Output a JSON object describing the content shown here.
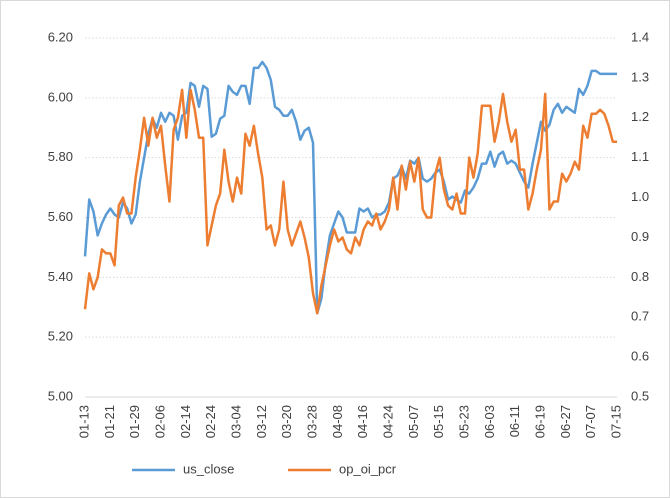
{
  "chart_data": {
    "type": "line",
    "categories": [
      "01-13",
      null,
      null,
      null,
      null,
      null,
      "01-21",
      null,
      null,
      null,
      null,
      null,
      "01-29",
      null,
      null,
      null,
      null,
      null,
      "02-06",
      null,
      null,
      null,
      null,
      null,
      "02-14",
      null,
      null,
      null,
      null,
      null,
      "02-24",
      null,
      null,
      null,
      null,
      null,
      "03-04",
      null,
      null,
      null,
      null,
      null,
      "03-12",
      null,
      null,
      null,
      null,
      null,
      "03-20",
      null,
      null,
      null,
      null,
      null,
      "03-28",
      null,
      null,
      null,
      null,
      null,
      "04-08",
      null,
      null,
      null,
      null,
      null,
      "04-16",
      null,
      null,
      null,
      null,
      null,
      "04-24",
      null,
      null,
      null,
      null,
      null,
      "05-07",
      null,
      null,
      null,
      null,
      null,
      "05-15",
      null,
      null,
      null,
      null,
      null,
      "05-23",
      null,
      null,
      null,
      null,
      null,
      "06-03",
      null,
      null,
      null,
      null,
      null,
      "06-11",
      null,
      null,
      null,
      null,
      null,
      "06-19",
      null,
      null,
      null,
      null,
      null,
      "06-27",
      null,
      null,
      null,
      null,
      null,
      "07-07",
      null,
      null,
      null,
      null,
      null,
      "07-15"
    ],
    "series": [
      {
        "name": "us_close",
        "color": "#5b9bd5",
        "axis": "y",
        "values": [
          5.47,
          5.66,
          5.62,
          5.54,
          5.58,
          5.61,
          5.63,
          5.61,
          5.6,
          5.65,
          5.63,
          5.58,
          5.61,
          5.72,
          5.8,
          5.88,
          5.93,
          5.9,
          5.95,
          5.92,
          5.95,
          5.94,
          5.86,
          5.94,
          5.95,
          6.05,
          6.04,
          5.97,
          6.04,
          6.03,
          5.87,
          5.88,
          5.93,
          5.94,
          6.04,
          6.02,
          6.01,
          6.04,
          6.04,
          5.98,
          6.1,
          6.1,
          6.12,
          6.1,
          6.06,
          5.97,
          5.96,
          5.94,
          5.94,
          5.96,
          5.92,
          5.86,
          5.89,
          5.9,
          5.85,
          5.28,
          5.33,
          5.45,
          5.54,
          5.58,
          5.62,
          5.6,
          5.55,
          5.55,
          5.55,
          5.63,
          5.62,
          5.63,
          5.6,
          5.61,
          5.61,
          5.62,
          5.65,
          5.73,
          5.74,
          5.77,
          5.73,
          5.79,
          5.78,
          5.8,
          5.73,
          5.72,
          5.73,
          5.75,
          5.76,
          5.72,
          5.66,
          5.67,
          5.66,
          5.65,
          5.69,
          5.68,
          5.7,
          5.73,
          5.78,
          5.78,
          5.82,
          5.77,
          5.81,
          5.82,
          5.78,
          5.79,
          5.78,
          5.75,
          5.72,
          5.7,
          5.78,
          5.85,
          5.92,
          5.89,
          5.91,
          5.96,
          5.98,
          5.95,
          5.97,
          5.96,
          5.95,
          6.03,
          6.01,
          6.04,
          6.09,
          6.09,
          6.08,
          6.08,
          6.08,
          6.08,
          6.08
        ]
      },
      {
        "name": "op_oi_pcr",
        "color": "#ed7d31",
        "axis": "y2",
        "values": [
          0.72,
          0.81,
          0.77,
          0.8,
          0.87,
          0.86,
          0.86,
          0.83,
          0.98,
          1.0,
          0.96,
          0.96,
          1.05,
          1.12,
          1.2,
          1.13,
          1.2,
          1.15,
          1.18,
          1.08,
          0.99,
          1.17,
          1.2,
          1.27,
          1.15,
          1.27,
          1.22,
          1.15,
          1.15,
          0.88,
          0.93,
          0.98,
          1.01,
          1.12,
          1.04,
          0.99,
          1.05,
          1.01,
          1.16,
          1.13,
          1.18,
          1.11,
          1.05,
          0.92,
          0.93,
          0.88,
          0.92,
          1.04,
          0.92,
          0.88,
          0.91,
          0.94,
          0.9,
          0.85,
          0.76,
          0.71,
          0.78,
          0.83,
          0.88,
          0.92,
          0.89,
          0.9,
          0.87,
          0.86,
          0.9,
          0.88,
          0.92,
          0.94,
          0.93,
          0.96,
          0.92,
          0.94,
          0.97,
          1.05,
          0.97,
          1.08,
          1.02,
          1.09,
          1.04,
          1.1,
          0.97,
          0.95,
          0.95,
          1.06,
          1.1,
          1.02,
          0.98,
          0.97,
          1.01,
          0.96,
          0.96,
          1.1,
          1.05,
          1.11,
          1.23,
          1.23,
          1.23,
          1.14,
          1.19,
          1.26,
          1.19,
          1.14,
          1.17,
          1.07,
          1.07,
          0.97,
          1.01,
          1.07,
          1.12,
          1.26,
          0.97,
          0.99,
          0.99,
          1.06,
          1.04,
          1.06,
          1.09,
          1.07,
          1.18,
          1.15,
          1.21,
          1.21,
          1.22,
          1.21,
          1.18,
          1.14,
          1.14
        ]
      }
    ],
    "ylim": [
      5.0,
      6.2
    ],
    "yticks": [
      {
        "value": 5.0,
        "label": "5.00"
      },
      {
        "value": 5.2,
        "label": "5.20"
      },
      {
        "value": 5.4,
        "label": "5.40"
      },
      {
        "value": 5.6,
        "label": "5.60"
      },
      {
        "value": 5.8,
        "label": "5.80"
      },
      {
        "value": 6.0,
        "label": "6.00"
      },
      {
        "value": 6.2,
        "label": "6.20"
      }
    ],
    "y2lim": [
      0.5,
      1.4
    ],
    "y2ticks": [
      0.5,
      0.6,
      0.7,
      0.8,
      0.9,
      {
        "value": 1.0,
        "label": "1.0"
      },
      1.1,
      1.2,
      1.3,
      1.4
    ],
    "grid": true,
    "legend": "bottom"
  }
}
